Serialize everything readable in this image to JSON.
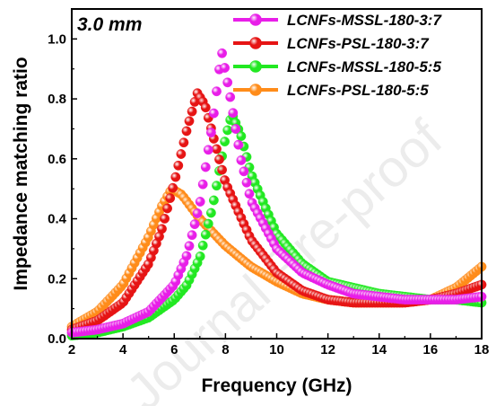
{
  "chart_data": {
    "type": "scatter",
    "annotation": "3.0 mm",
    "xlabel": "Frequency (GHz)",
    "ylabel": "Impedance matching ratio",
    "xlim": [
      2,
      18
    ],
    "ylim": [
      0,
      1.1
    ],
    "xticks": [
      2,
      4,
      6,
      8,
      10,
      12,
      14,
      16,
      18
    ],
    "yticks": [
      0.0,
      0.2,
      0.4,
      0.6,
      0.8,
      1.0
    ],
    "xtick_labels": [
      "2",
      "4",
      "6",
      "8",
      "10",
      "12",
      "14",
      "16",
      "18"
    ],
    "ytick_labels": [
      "0.0",
      "0.2",
      "0.4",
      "0.6",
      "0.8",
      "1.0"
    ],
    "legend_position": "top-right",
    "grid": false,
    "watermark": "Journal Pre-proof",
    "series": [
      {
        "name": "LCNFs-MSSL-180-3:7",
        "color": "#e81ee8",
        "points": [
          [
            2,
            0.02
          ],
          [
            3,
            0.03
          ],
          [
            4,
            0.05
          ],
          [
            5,
            0.09
          ],
          [
            6,
            0.18
          ],
          [
            6.5,
            0.28
          ],
          [
            7,
            0.45
          ],
          [
            7.5,
            0.72
          ],
          [
            7.85,
            0.96
          ],
          [
            8.2,
            0.8
          ],
          [
            8.6,
            0.6
          ],
          [
            9,
            0.46
          ],
          [
            10,
            0.3
          ],
          [
            11,
            0.22
          ],
          [
            12,
            0.18
          ],
          [
            13,
            0.15
          ],
          [
            14,
            0.14
          ],
          [
            15,
            0.13
          ],
          [
            16,
            0.13
          ],
          [
            17,
            0.13
          ],
          [
            18,
            0.14
          ]
        ]
      },
      {
        "name": "LCNFs-PSL-180-3:7",
        "color": "#e61414",
        "points": [
          [
            2,
            0.03
          ],
          [
            3,
            0.06
          ],
          [
            4,
            0.12
          ],
          [
            5,
            0.25
          ],
          [
            5.5,
            0.36
          ],
          [
            6,
            0.52
          ],
          [
            6.5,
            0.7
          ],
          [
            6.9,
            0.82
          ],
          [
            7.2,
            0.78
          ],
          [
            7.6,
            0.65
          ],
          [
            8,
            0.52
          ],
          [
            9,
            0.33
          ],
          [
            10,
            0.22
          ],
          [
            11,
            0.16
          ],
          [
            12,
            0.13
          ],
          [
            13,
            0.12
          ],
          [
            14,
            0.12
          ],
          [
            15,
            0.12
          ],
          [
            16,
            0.13
          ],
          [
            17,
            0.15
          ],
          [
            18,
            0.18
          ]
        ]
      },
      {
        "name": "LCNFs-MSSL-180-5:5",
        "color": "#22e822",
        "points": [
          [
            2,
            0.01
          ],
          [
            3,
            0.02
          ],
          [
            4,
            0.04
          ],
          [
            5,
            0.07
          ],
          [
            6,
            0.13
          ],
          [
            6.5,
            0.18
          ],
          [
            7,
            0.27
          ],
          [
            7.5,
            0.44
          ],
          [
            8,
            0.67
          ],
          [
            8.25,
            0.75
          ],
          [
            8.6,
            0.68
          ],
          [
            9,
            0.55
          ],
          [
            10,
            0.35
          ],
          [
            11,
            0.25
          ],
          [
            12,
            0.19
          ],
          [
            13,
            0.17
          ],
          [
            14,
            0.15
          ],
          [
            15,
            0.14
          ],
          [
            16,
            0.13
          ],
          [
            17,
            0.13
          ],
          [
            18,
            0.12
          ]
        ]
      },
      {
        "name": "LCNFs-PSL-180-5:5",
        "color": "#ff8c1a",
        "points": [
          [
            2,
            0.04
          ],
          [
            3,
            0.09
          ],
          [
            4,
            0.18
          ],
          [
            5,
            0.34
          ],
          [
            5.5,
            0.44
          ],
          [
            5.9,
            0.5
          ],
          [
            6.3,
            0.48
          ],
          [
            7,
            0.4
          ],
          [
            8,
            0.31
          ],
          [
            9,
            0.24
          ],
          [
            10,
            0.19
          ],
          [
            11,
            0.15
          ],
          [
            12,
            0.13
          ],
          [
            13,
            0.12
          ],
          [
            14,
            0.12
          ],
          [
            15,
            0.12
          ],
          [
            16,
            0.13
          ],
          [
            17,
            0.17
          ],
          [
            18,
            0.24
          ]
        ]
      }
    ]
  }
}
